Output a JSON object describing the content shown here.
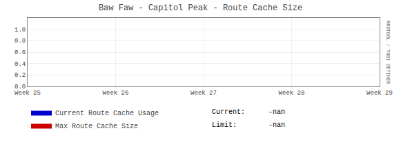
{
  "chart_data": {
    "type": "area",
    "title": "Baw Faw - Capitol Peak - Route Cache Size",
    "categories": [
      "Week 25",
      "Week 26",
      "Week 27",
      "Week 28",
      "Week 29"
    ],
    "series": [
      {
        "name": "Current Route Cache Usage",
        "color": "#0000cc",
        "values": [
          null,
          null,
          null,
          null,
          null
        ]
      },
      {
        "name": "Max Route Cache Size",
        "color": "#cc0000",
        "values": [
          null,
          null,
          null,
          null,
          null
        ]
      }
    ],
    "ylim": [
      0.0,
      1.2
    ],
    "yticks": [
      {
        "value": 0.0,
        "label": "0.0"
      },
      0.2,
      0.4,
      0.6,
      0.8,
      {
        "value": 1.0,
        "label": "1.0"
      }
    ],
    "grid": true,
    "legend": "bottom",
    "annotations": [
      "Current:",
      "-nan",
      "Limit:",
      "-nan",
      "RRDTOOL / TOBI OETIKER"
    ]
  }
}
